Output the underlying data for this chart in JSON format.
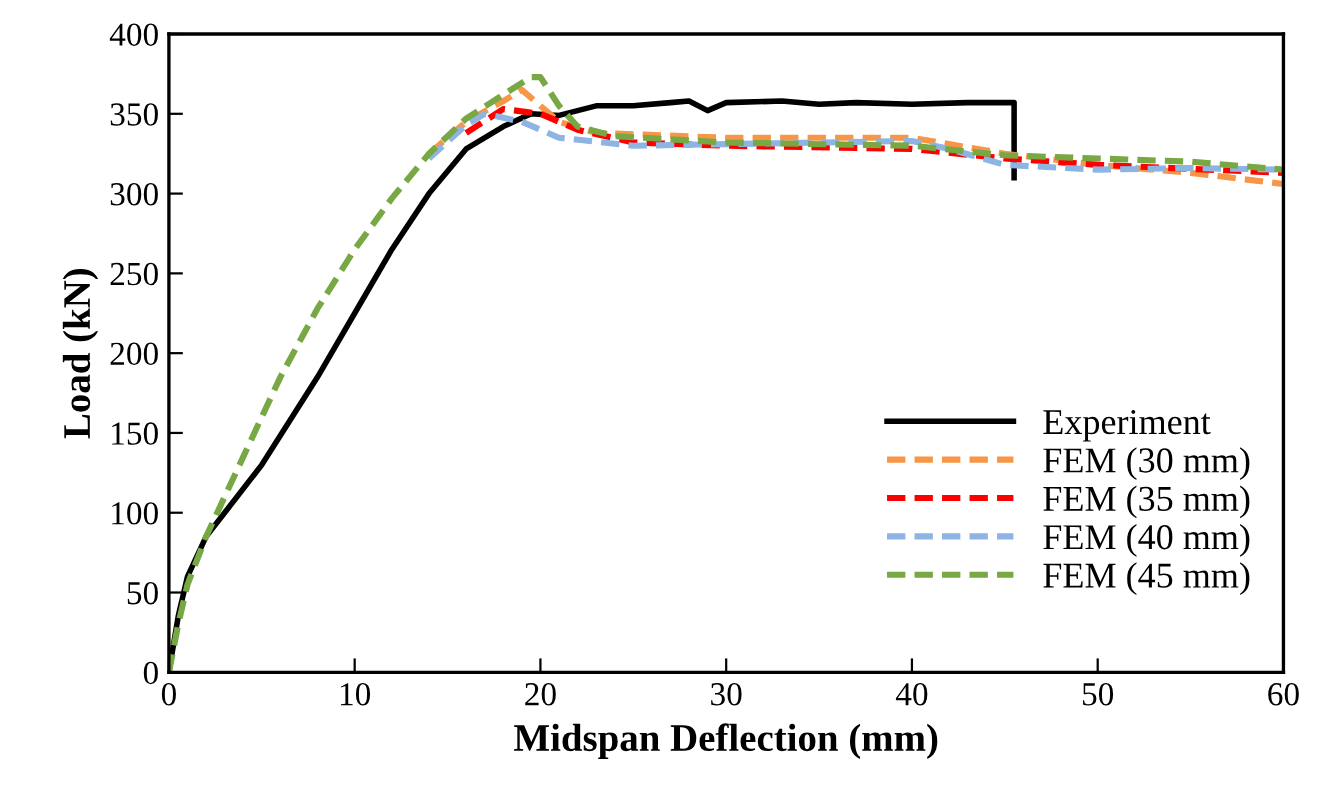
{
  "chart_data": {
    "type": "line",
    "xlabel": "Midspan Deflection (mm)",
    "ylabel": "Load (kN)",
    "xlim": [
      0,
      60
    ],
    "xticks": [
      0,
      10,
      20,
      30,
      40,
      50,
      60
    ],
    "ylim": [
      0,
      400
    ],
    "yticks": [
      0,
      50,
      100,
      150,
      200,
      250,
      300,
      350,
      400
    ],
    "grid": false,
    "legend": "bottom right",
    "series": [
      {
        "name": "Experiment",
        "color": "#000000",
        "line_style": "solid",
        "x": [
          0,
          0.5,
          1,
          2,
          3,
          5,
          8,
          10,
          12,
          14,
          16,
          18,
          19.5,
          21,
          22,
          23,
          25,
          27,
          28,
          29,
          30,
          33,
          35,
          37,
          40,
          43,
          45.5,
          45.5
        ],
        "values": [
          0,
          35,
          60,
          85,
          100,
          130,
          185,
          225,
          265,
          300,
          328,
          342,
          350,
          349,
          352,
          355,
          355,
          357,
          358,
          352,
          357,
          358,
          356,
          357,
          356,
          357,
          357,
          310
        ]
      },
      {
        "name": "FEM (30 mm)",
        "color": "#f79646",
        "line_style": "dashed",
        "x": [
          14,
          16,
          18,
          19,
          21,
          23,
          30,
          40,
          45,
          50,
          55,
          60
        ],
        "values": [
          325,
          345,
          358,
          365,
          345,
          338,
          335,
          335,
          325,
          318,
          313,
          306
        ]
      },
      {
        "name": "FEM (35 mm)",
        "color": "#ff0000",
        "line_style": "dashed",
        "x": [
          16,
          18,
          20,
          22,
          25,
          30,
          40,
          45,
          50,
          60
        ],
        "values": [
          338,
          353,
          350,
          340,
          332,
          330,
          328,
          322,
          318,
          313
        ]
      },
      {
        "name": "FEM (40 mm)",
        "color": "#8db4e2",
        "line_style": "dashed",
        "x": [
          14,
          16,
          17,
          19,
          21,
          25,
          35,
          40,
          42,
          45,
          50,
          55,
          60
        ],
        "values": [
          322,
          343,
          350,
          345,
          335,
          330,
          332,
          333,
          328,
          318,
          315,
          316,
          315
        ]
      },
      {
        "name": "FEM (45 mm)",
        "color": "#77a844",
        "line_style": "dashed",
        "x": [
          0,
          0.5,
          1,
          2,
          4,
          6,
          8,
          10,
          12,
          14,
          16,
          18,
          19.5,
          20,
          21,
          22,
          24,
          30,
          40,
          45,
          50,
          55,
          60
        ],
        "values": [
          0,
          30,
          55,
          85,
          135,
          185,
          228,
          265,
          297,
          325,
          347,
          362,
          373,
          373,
          355,
          342,
          336,
          332,
          330,
          324,
          322,
          320,
          315
        ]
      }
    ]
  }
}
